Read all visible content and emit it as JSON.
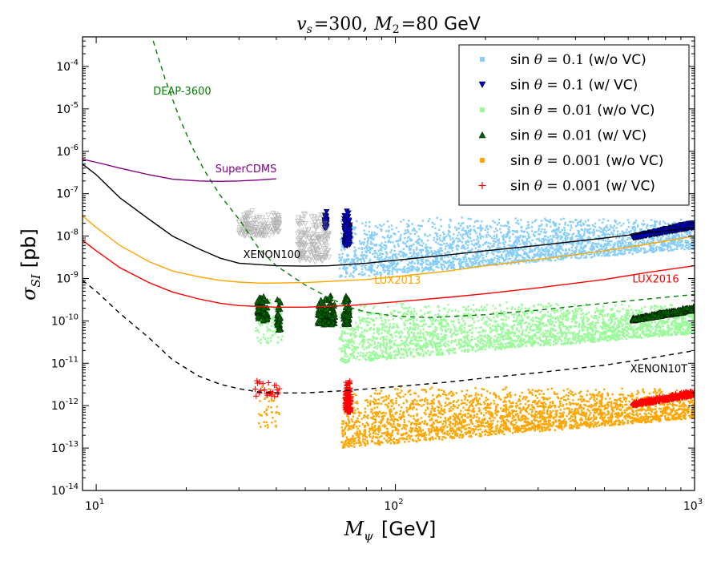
{
  "chart_data": {
    "type": "scatter",
    "title": "v_s =300, M_2 =80 GeV",
    "title_parts": {
      "vs_symbol": "v",
      "vs_sub": "s",
      "vs_value": "=300,",
      "m2_symbol": "M",
      "m2_sub": "2",
      "m2_value": "=80",
      "unit": "GeV"
    },
    "xlabel": "M_ψ [GeV]",
    "xlabel_parts": {
      "symbol": "M",
      "sub": "ψ",
      "unit": "[GeV]"
    },
    "ylabel": "σ_SI [pb]",
    "ylabel_parts": {
      "symbol": "σ",
      "sub": "SI",
      "unit": "[pb]"
    },
    "x_scale": "log",
    "y_scale": "log",
    "xlim": [
      9,
      1000
    ],
    "ylim": [
      1e-14,
      0.0005
    ],
    "x_ticks": [
      {
        "value": 10,
        "base": "10",
        "exp": "1"
      },
      {
        "value": 100,
        "base": "10",
        "exp": "2"
      },
      {
        "value": 1000,
        "base": "10",
        "exp": "3"
      }
    ],
    "y_ticks": [
      {
        "value": 1e-14,
        "base": "10",
        "exp": "-14"
      },
      {
        "value": 1e-13,
        "base": "10",
        "exp": "-13"
      },
      {
        "value": 1e-12,
        "base": "10",
        "exp": "-12"
      },
      {
        "value": 1e-11,
        "base": "10",
        "exp": "-11"
      },
      {
        "value": 1e-10,
        "base": "10",
        "exp": "-10"
      },
      {
        "value": 1e-09,
        "base": "10",
        "exp": "-9"
      },
      {
        "value": 1e-08,
        "base": "10",
        "exp": "-8"
      },
      {
        "value": 1e-07,
        "base": "10",
        "exp": "-7"
      },
      {
        "value": 1e-06,
        "base": "10",
        "exp": "-6"
      },
      {
        "value": 1e-05,
        "base": "10",
        "exp": "-5"
      },
      {
        "value": 0.0001,
        "base": "10",
        "exp": "-4"
      }
    ],
    "legend_position": "upper right",
    "legend": [
      {
        "marker": "square",
        "color": "#87cefa",
        "prefix": "sin",
        "theta": "θ",
        "value": "= 0.1",
        "suffix": "(w/o VC)"
      },
      {
        "marker": "triangle-down",
        "color": "#0000cd",
        "prefix": "sin",
        "theta": "θ",
        "value": "= 0.1",
        "suffix": "(w/ VC)"
      },
      {
        "marker": "square",
        "color": "#98fb98",
        "prefix": "sin",
        "theta": "θ",
        "value": "= 0.01",
        "suffix": "(w/o VC)"
      },
      {
        "marker": "triangle-up",
        "color": "#006400",
        "prefix": "sin",
        "theta": "θ",
        "value": "= 0.01",
        "suffix": "(w/ VC)"
      },
      {
        "marker": "square",
        "color": "#ffa500",
        "prefix": "sin",
        "theta": "θ",
        "value": "= 0.001",
        "suffix": "(w/o VC)"
      },
      {
        "marker": "plus",
        "color": "#ff0000",
        "prefix": "sin",
        "theta": "θ",
        "value": "= 0.001",
        "suffix": "(w/ VC)"
      }
    ],
    "curves": [
      {
        "name": "DEAP-3600",
        "color": "#008000",
        "style": "dashed",
        "label": {
          "text": "DEAP-3600",
          "x": 15.5,
          "y": 2.2e-05
        },
        "x": [
          15.5,
          17,
          19,
          21,
          23,
          26,
          30,
          35,
          40,
          50,
          60,
          70,
          80,
          100,
          130,
          200,
          300,
          500,
          700,
          1000
        ],
        "y": [
          0.0004,
          5e-05,
          6e-06,
          1.2e-06,
          3.5e-07,
          9e-08,
          2.5e-08,
          5e-09,
          2e-09,
          7e-10,
          3.5e-10,
          2.1e-10,
          1.6e-10,
          1.3e-10,
          1.2e-10,
          1.4e-10,
          1.8e-10,
          2.6e-10,
          3.3e-10,
          4.2e-10
        ]
      },
      {
        "name": "SuperCDMS",
        "color": "#800080",
        "style": "solid",
        "label": {
          "text": "SuperCDMS",
          "x": 25,
          "y": 3.2e-07
        },
        "x": [
          9,
          10,
          12,
          15,
          18,
          22,
          26,
          30,
          35,
          40
        ],
        "y": [
          6.5e-07,
          5.5e-07,
          4e-07,
          2.8e-07,
          2.2e-07,
          2e-07,
          1.95e-07,
          2e-07,
          2.1e-07,
          2.25e-07
        ]
      },
      {
        "name": "XENON100",
        "color": "#000000",
        "style": "solid",
        "label": {
          "text": "XENON100",
          "x": 31,
          "y": 3e-09
        },
        "x": [
          9,
          10,
          12,
          15,
          18,
          22,
          26,
          30,
          40,
          50,
          60,
          80,
          100,
          150,
          200,
          300,
          500,
          700,
          1000
        ],
        "y": [
          5e-07,
          2.8e-07,
          8e-08,
          2.5e-08,
          1e-08,
          5e-09,
          3e-09,
          2.3e-09,
          2e-09,
          1.95e-09,
          2e-09,
          2.3e-09,
          2.7e-09,
          3.6e-09,
          4.5e-09,
          6e-09,
          9e-09,
          1.2e-08,
          1.6e-08
        ]
      },
      {
        "name": "LUX2013",
        "color": "#ffa500",
        "style": "solid",
        "label": {
          "text": "LUX2013",
          "x": 85,
          "y": 7.5e-10
        },
        "x": [
          9,
          10,
          12,
          15,
          18,
          22,
          26,
          30,
          35,
          40,
          50,
          60,
          80,
          100,
          150,
          200,
          300,
          500,
          700,
          1000
        ],
        "y": [
          3e-08,
          1.6e-08,
          6e-09,
          2.5e-09,
          1.5e-09,
          1.1e-09,
          9e-10,
          8.2e-10,
          7.8e-10,
          7.8e-10,
          8e-10,
          8.5e-10,
          9.5e-10,
          1.1e-09,
          1.5e-09,
          2e-09,
          2.8e-09,
          4.5e-09,
          6.5e-09,
          1e-08
        ]
      },
      {
        "name": "LUX2016",
        "color": "#ff0000",
        "style": "solid",
        "label": {
          "text": "LUX2016",
          "x": 620,
          "y": 8e-10
        },
        "x": [
          9,
          10,
          12,
          15,
          18,
          22,
          26,
          30,
          40,
          50,
          70,
          100,
          150,
          200,
          300,
          500,
          700,
          1000
        ],
        "y": [
          8e-09,
          4.5e-09,
          1.8e-09,
          8e-10,
          4.8e-10,
          3.3e-10,
          2.6e-10,
          2.3e-10,
          2.1e-10,
          2.1e-10,
          2.3e-10,
          2.8e-10,
          3.6e-10,
          4.4e-10,
          6e-10,
          9.5e-10,
          1.4e-09,
          2e-09
        ]
      },
      {
        "name": "XENON10T",
        "color": "#000000",
        "style": "dashed",
        "label": {
          "text": "XENON10T",
          "x": 610,
          "y": 6.2e-12
        },
        "x": [
          9,
          10,
          12,
          15,
          18,
          22,
          26,
          30,
          35,
          40,
          50,
          70,
          100,
          150,
          200,
          300,
          500,
          700,
          1000
        ],
        "y": [
          9e-10,
          5e-10,
          1.5e-10,
          4e-11,
          1.2e-11,
          5e-12,
          3.2e-12,
          2.5e-12,
          2.1e-12,
          2e-12,
          2e-12,
          2.3e-12,
          2.8e-12,
          3.6e-12,
          4.5e-12,
          6e-12,
          9e-12,
          1.3e-11,
          2e-11
        ]
      }
    ],
    "scatter_regions": [
      {
        "series": "sin θ = 0.1 (w/o VC)",
        "marker": "square",
        "color": "#87cefa",
        "x_range": [
          65,
          1000
        ],
        "y_top": [
          3e-08,
          2.5e-08
        ],
        "y_bottom": [
          1e-09,
          5e-09
        ],
        "count": 2600
      },
      {
        "series": "sin θ = 0.1 (w/ VC)",
        "marker": "triangle-down",
        "color": "#0000cd",
        "x_range": [
          620,
          1000
        ],
        "y_top": [
          1e-08,
          2.2e-08
        ],
        "y_bottom": [
          9e-09,
          1.6e-08
        ],
        "count": 400
      },
      {
        "series": "sin θ = 0.1 (w/ VC) column",
        "marker": "triangle-down",
        "color": "#0000cd",
        "x_range": [
          58,
          59
        ],
        "y_top": [
          4e-08,
          4e-08
        ],
        "y_bottom": [
          1.5e-08,
          1.5e-08
        ],
        "count": 40
      },
      {
        "series": "sin θ = 0.1 (w/ VC) column",
        "marker": "triangle-down",
        "color": "#0000cd",
        "x_range": [
          67.5,
          70.5
        ],
        "y_top": [
          4e-08,
          4e-08
        ],
        "y_bottom": [
          6e-09,
          6e-09
        ],
        "count": 120
      },
      {
        "series": "grey scan points",
        "marker": "triangle-down",
        "color": "#999999",
        "x_range": [
          30,
          38
        ],
        "y_top": [
          4e-08,
          4e-08
        ],
        "y_bottom": [
          1e-08,
          1e-08
        ],
        "count": 110
      },
      {
        "series": "grey scan points",
        "marker": "triangle-down",
        "color": "#999999",
        "x_range": [
          39,
          41
        ],
        "y_top": [
          4e-08,
          4e-08
        ],
        "y_bottom": [
          1.2e-08,
          1.2e-08
        ],
        "count": 40
      },
      {
        "series": "grey scan points",
        "marker": "triangle-down",
        "color": "#999999",
        "x_range": [
          47,
          60
        ],
        "y_top": [
          4e-08,
          4e-08
        ],
        "y_bottom": [
          2.5e-09,
          2.5e-09
        ],
        "count": 180
      },
      {
        "series": "sin θ = 0.01 (w/o VC)",
        "marker": "square",
        "color": "#98fb98",
        "x_range": [
          65,
          1000
        ],
        "y_top": [
          3e-10,
          2.5e-10
        ],
        "y_bottom": [
          1e-11,
          5e-11
        ],
        "count": 2600
      },
      {
        "series": "sin θ = 0.01 (w/o VC) low-mass",
        "marker": "square",
        "color": "#98fb98",
        "x_range": [
          34,
          42
        ],
        "y_top": [
          4e-10,
          4e-10
        ],
        "y_bottom": [
          3e-11,
          3e-11
        ],
        "count": 90
      },
      {
        "series": "sin θ = 0.01 (w/ VC)",
        "marker": "triangle-up",
        "color": "#006400",
        "x_range": [
          620,
          1000
        ],
        "y_top": [
          1.2e-10,
          2.3e-10
        ],
        "y_bottom": [
          1e-10,
          1.7e-10
        ],
        "count": 400
      },
      {
        "series": "sin θ = 0.01 (w/ VC) column",
        "marker": "triangle-up",
        "color": "#006400",
        "x_range": [
          34.5,
          37.5
        ],
        "y_top": [
          4e-10,
          4e-10
        ],
        "y_bottom": [
          1e-10,
          1e-10
        ],
        "count": 60
      },
      {
        "series": "sin θ = 0.01 (w/ VC) column",
        "marker": "triangle-up",
        "color": "#006400",
        "x_range": [
          40,
          41.5
        ],
        "y_top": [
          4e-10,
          4e-10
        ],
        "y_bottom": [
          6e-11,
          6e-11
        ],
        "count": 30
      },
      {
        "series": "sin θ = 0.01 (w/ VC) column",
        "marker": "triangle-up",
        "color": "#006400",
        "x_range": [
          55,
          63
        ],
        "y_top": [
          4e-10,
          4e-10
        ],
        "y_bottom": [
          8e-11,
          8e-11
        ],
        "count": 110
      },
      {
        "series": "sin θ = 0.01 (w/ VC) column",
        "marker": "triangle-up",
        "color": "#006400",
        "x_range": [
          67,
          70.5
        ],
        "y_top": [
          4e-10,
          4e-10
        ],
        "y_bottom": [
          8e-11,
          8e-11
        ],
        "count": 60
      },
      {
        "series": "sin θ = 0.001 (w/o VC)",
        "marker": "square",
        "color": "#ffa500",
        "x_range": [
          66,
          1000
        ],
        "y_top": [
          3e-12,
          2.5e-12
        ],
        "y_bottom": [
          1e-13,
          5e-13
        ],
        "count": 2600
      },
      {
        "series": "sin θ = 0.001 (w/o VC) low-mass",
        "marker": "square",
        "color": "#ffa500",
        "x_range": [
          35,
          41
        ],
        "y_top": [
          4e-12,
          4e-12
        ],
        "y_bottom": [
          3e-13,
          3e-13
        ],
        "count": 40
      },
      {
        "series": "sin θ = 0.001 (w/ VC)",
        "marker": "plus",
        "color": "#ff0000",
        "x_range": [
          620,
          1000
        ],
        "y_top": [
          1.2e-12,
          2.4e-12
        ],
        "y_bottom": [
          1e-12,
          1.7e-12
        ],
        "count": 400
      },
      {
        "series": "sin θ = 0.001 (w/ VC) column",
        "marker": "plus",
        "color": "#ff0000",
        "x_range": [
          68,
          71
        ],
        "y_top": [
          4e-12,
          4e-12
        ],
        "y_bottom": [
          7e-13,
          7e-13
        ],
        "count": 140
      },
      {
        "series": "sin θ = 0.001 (w/ VC) low-mass",
        "marker": "plus",
        "color": "#ff0000",
        "x_range": [
          34,
          41
        ],
        "y_top": [
          4.2e-12,
          4.2e-12
        ],
        "y_bottom": [
          1.6e-12,
          1.6e-12
        ],
        "count": 25
      }
    ]
  }
}
